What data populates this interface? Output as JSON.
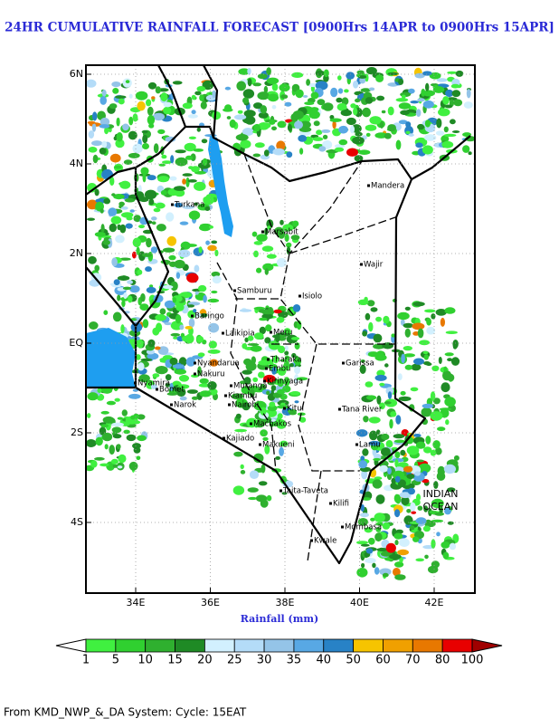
{
  "title": "24HR CUMULATIVE RAINFALL FORECAST [0900Hrs 14APR to 0900Hrs 15APR]",
  "map": {
    "lat_labels": [
      "6N",
      "4N",
      "2N",
      "EQ",
      "2S",
      "4S"
    ],
    "lon_labels": [
      "34E",
      "36E",
      "38E",
      "40E",
      "42E"
    ],
    "places": [
      "Turkana",
      "Marsabit",
      "Mandera",
      "Wajir",
      "Samburu",
      "Isiolo",
      "Baringo",
      "Laikipia",
      "Meru",
      "Garissa",
      "Nyandarua",
      "Nakuru",
      "Tharaka",
      "Embu",
      "Kirinyaga",
      "Muranga",
      "Nyamira",
      "Bomet",
      "Narok",
      "Kiambu",
      "Nairobi",
      "Kitui",
      "Machakos",
      "Tana River",
      "Kajiado",
      "Makueni",
      "Lamu",
      "Taita-Taveta",
      "Kilifi",
      "Mombasa",
      "Kwale"
    ],
    "ocean_label": [
      "INDIAN",
      "OCEAN"
    ]
  },
  "legend": {
    "title": "Rainfall (mm)",
    "levels": [
      1,
      5,
      10,
      15,
      20,
      25,
      30,
      35,
      40,
      50,
      60,
      70,
      80,
      100
    ],
    "colors": [
      "#40f040",
      "#30d030",
      "#2fb02f",
      "#1f8a25",
      "#d2f0fe",
      "#b4dcf8",
      "#94c4e8",
      "#58a8e4",
      "#2882c6",
      "#f6c400",
      "#f0a000",
      "#e87800",
      "#e80000"
    ],
    "under_color": "#ffffff",
    "over_color": "#a00000"
  },
  "footer": "From KMD_NWP_&_DA System: Cycle: 15EAT"
}
